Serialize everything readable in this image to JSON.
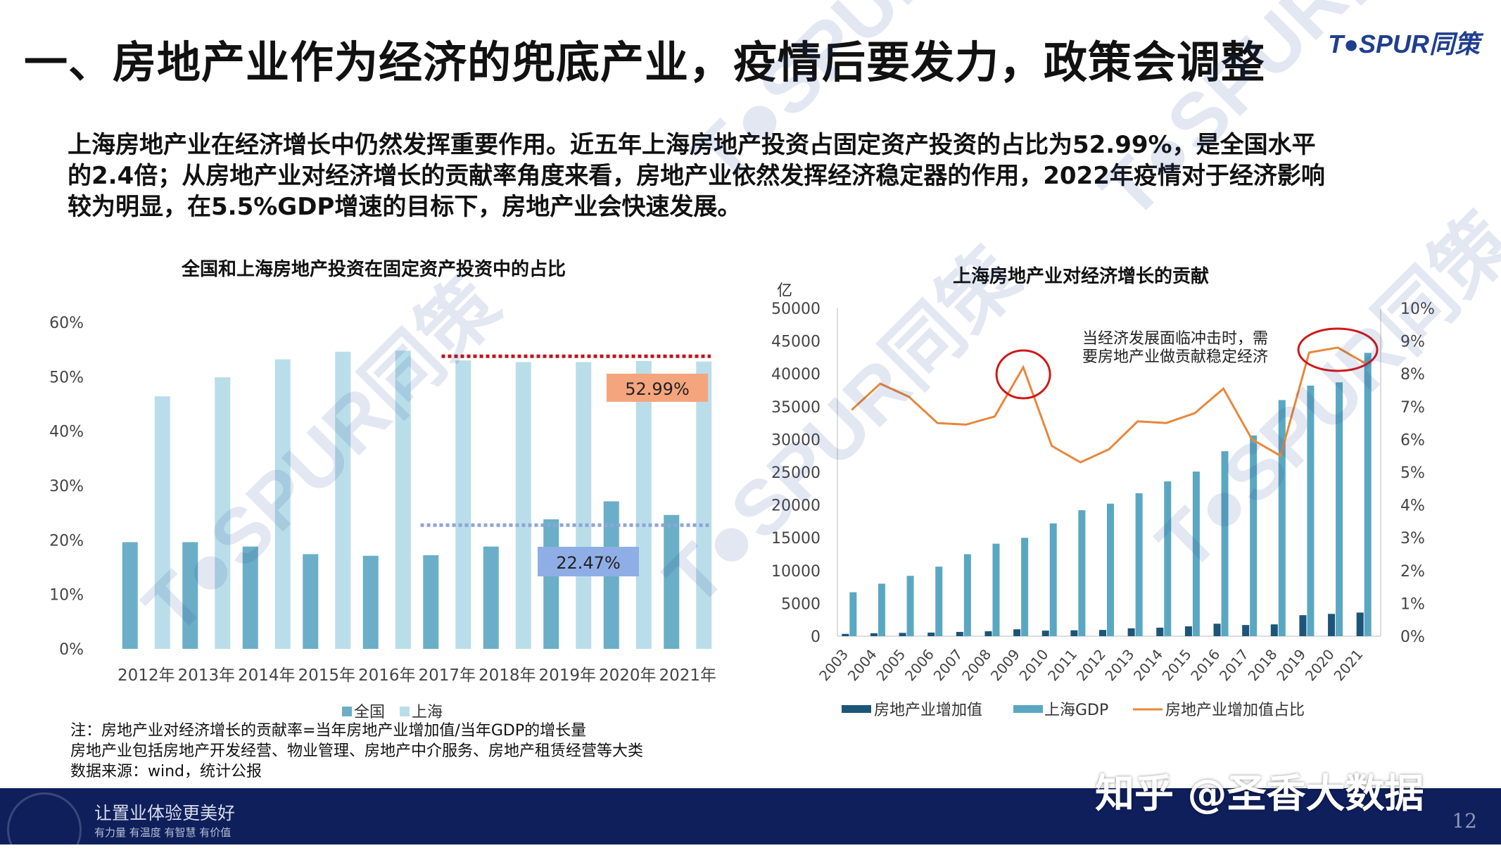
{
  "page": {
    "title": "一、房地产业作为经济的兜底产业，疫情后要发力，政策会调整",
    "logo": "T●SPUR同策",
    "intro": [
      "上海房地产业在经济增长中仍然发挥重要作用。近五年上海房地产投资占固定资产投资的占比为52.99%，是全国水平",
      "的2.4倍；从房地产业对经济增长的贡献率角度来看，房地产业依然发挥经济稳定器的作用，2022年疫情对于经济影响",
      "较为明显，在5.5%GDP增速的目标下，房地产业会快速发展。"
    ],
    "notes": [
      "注：房地产业对经济增长的贡献率=当年房地产业增加值/当年GDP的增长量",
      "房地产业包括房地产开发经营、物业管理、房地产中介服务、房地产租赁经营等大类",
      "数据来源：wind，统计公报"
    ],
    "footer": {
      "slogan": "让置业体验更美好",
      "sub": "有力量 有温度 有智慧 有价值",
      "page_number": "12"
    },
    "source_credit": "知乎 @圣香大数据",
    "watermark": "T●SPUR同策",
    "colors": {
      "national": "#6baec7",
      "shanghai": "#b9deea",
      "gdp": "#5aa7c2",
      "re_value": "#1c5577",
      "ratio_line": "#e8873a",
      "red_dot": "#c0151a",
      "blue_dot": "#8ea5d8",
      "label_orange": "#f4a57e",
      "label_blue": "#8faee6",
      "circle": "#d01818"
    }
  },
  "chart_data": [
    {
      "type": "bar",
      "title": "全国和上海房地产投资在固定资产投资中的占比",
      "categories": [
        "2012年",
        "2013年",
        "2014年",
        "2015年",
        "2016年",
        "2017年",
        "2018年",
        "2019年",
        "2020年",
        "2021年"
      ],
      "series": [
        {
          "name": "全国",
          "values": [
            19.6,
            19.6,
            18.8,
            17.4,
            17.1,
            17.2,
            18.8,
            23.8,
            27.1,
            24.6
          ]
        },
        {
          "name": "上海",
          "values": [
            46.4,
            49.9,
            53.2,
            54.6,
            54.8,
            53.0,
            52.7,
            52.7,
            52.9,
            52.8
          ]
        }
      ],
      "y_ticks": [
        "0%",
        "10%",
        "20%",
        "30%",
        "40%",
        "50%",
        "60%"
      ],
      "ylim": [
        0,
        60
      ],
      "annotations": [
        {
          "label": "52.99%",
          "value": 52.99,
          "from_category": "2017年",
          "to_category": "2021年",
          "style": "red dotted"
        },
        {
          "label": "22.47%",
          "value": 22.47,
          "from_category": "2017年",
          "to_category": "2021年",
          "style": "blue dotted"
        }
      ],
      "legend": "bottom",
      "grid": false
    },
    {
      "type": "bar+line",
      "title": "上海房地产业对经济增长的贡献",
      "y_unit": "亿",
      "categories": [
        "2003",
        "2004",
        "2005",
        "2006",
        "2007",
        "2008",
        "2009",
        "2010",
        "2011",
        "2012",
        "2013",
        "2014",
        "2015",
        "2016",
        "2017",
        "2018",
        "2019",
        "2020",
        "2021"
      ],
      "series": [
        {
          "name": "房地产业增加值",
          "axis": "left",
          "values": [
            350,
            450,
            500,
            550,
            650,
            750,
            1050,
            850,
            900,
            950,
            1200,
            1300,
            1500,
            1900,
            1700,
            1800,
            3200,
            3400,
            3600
          ]
        },
        {
          "name": "上海GDP",
          "axis": "left",
          "values": [
            6700,
            8000,
            9200,
            10600,
            12500,
            14100,
            15000,
            17200,
            19200,
            20200,
            21800,
            23600,
            25100,
            28200,
            30600,
            36000,
            38200,
            38700,
            43200
          ]
        },
        {
          "name": "房地产业增加值占比",
          "axis": "right",
          "type": "line",
          "values": [
            6.9,
            7.7,
            7.3,
            6.5,
            6.45,
            6.7,
            8.2,
            5.8,
            5.3,
            5.7,
            6.55,
            6.5,
            6.8,
            7.55,
            6.0,
            5.5,
            8.65,
            8.8,
            8.3
          ]
        }
      ],
      "y_ticks_left": [
        "0",
        "5000",
        "10000",
        "15000",
        "20000",
        "25000",
        "30000",
        "35000",
        "40000",
        "45000",
        "50000"
      ],
      "y_ticks_right": [
        "0%",
        "1%",
        "2%",
        "3%",
        "4%",
        "5%",
        "6%",
        "7%",
        "8%",
        "9%",
        "10%"
      ],
      "ylim_left": [
        0,
        50000
      ],
      "ylim_right": [
        0,
        10
      ],
      "annotation_text": [
        "当经济发展面临冲击时，需",
        "要房地产业做贡献稳定经济"
      ],
      "highlight_categories": [
        "2009",
        "2019",
        "2020",
        "2021"
      ],
      "legend": "bottom",
      "grid": false
    }
  ]
}
